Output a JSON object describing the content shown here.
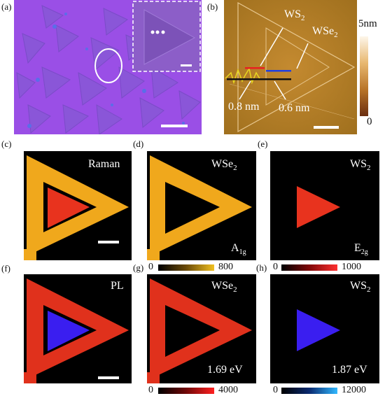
{
  "panels": {
    "a": {
      "label": "(a)"
    },
    "b": {
      "label": "(b)",
      "ws2": "WS",
      "ws2_sub": "2",
      "wse2": "WSe",
      "wse2_sub": "2",
      "h1": "0.8 nm",
      "h2": "0.6 nm",
      "cbar_top": "5nm",
      "cbar_bottom": "0"
    },
    "c": {
      "label": "(c)",
      "text": "Raman"
    },
    "d": {
      "label": "(d)",
      "text": "WSe",
      "text_sub": "2",
      "mode": "A",
      "mode_sub": "1g",
      "cbar_min": "0",
      "cbar_max": "800"
    },
    "e": {
      "label": "(e)",
      "text": "WS",
      "text_sub": "2",
      "mode": "E",
      "mode_sub": "2g"
    },
    "f": {
      "label": "(f)",
      "text": "PL"
    },
    "g": {
      "label": "(g)",
      "text": "WSe",
      "text_sub": "2",
      "energy": "1.69 eV",
      "cbar_min": "0",
      "cbar_max": "4000"
    },
    "h": {
      "label": "(h)",
      "text": "WS",
      "text_sub": "2",
      "energy": "1.87 eV",
      "cbar_min": "0",
      "cbar_max": "1000"
    },
    "i": {
      "cbar_min": "0",
      "cbar_max": "12000"
    }
  },
  "colors": {
    "optical_bg": "#9a4fe6",
    "afm_bg": "#b8822a",
    "raman_wse2": "#f0a81c",
    "raman_ws2": "#e8331e",
    "pl_wse2": "#e0311c",
    "pl_ws2": "#3a1ef0"
  }
}
